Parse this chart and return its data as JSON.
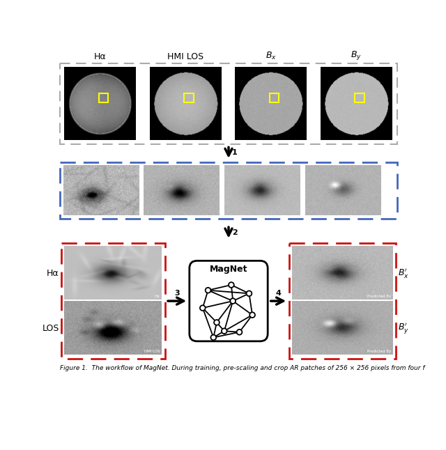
{
  "title_labels": [
    "Hα",
    "HMI LOS",
    "$B_x$",
    "$B_y$"
  ],
  "title_primes": [
    "$B_x'$",
    "$B_y'$"
  ],
  "left_labels": [
    "Hα",
    "LOS"
  ],
  "arrow_labels": [
    "1",
    "2",
    "3",
    "4"
  ],
  "magnet_label": "MagNet",
  "caption": "Figure 1.  The workflow of MagNet. During training, pre-scaling and crop AR patches of 256 × 256 pixels from four f",
  "box_dash_gray": "#aaaaaa",
  "box_dash_blue": "#4466bb",
  "box_dash_red": "#cc1111",
  "bg_color": "#ffffff",
  "arrow_color": "#111111"
}
